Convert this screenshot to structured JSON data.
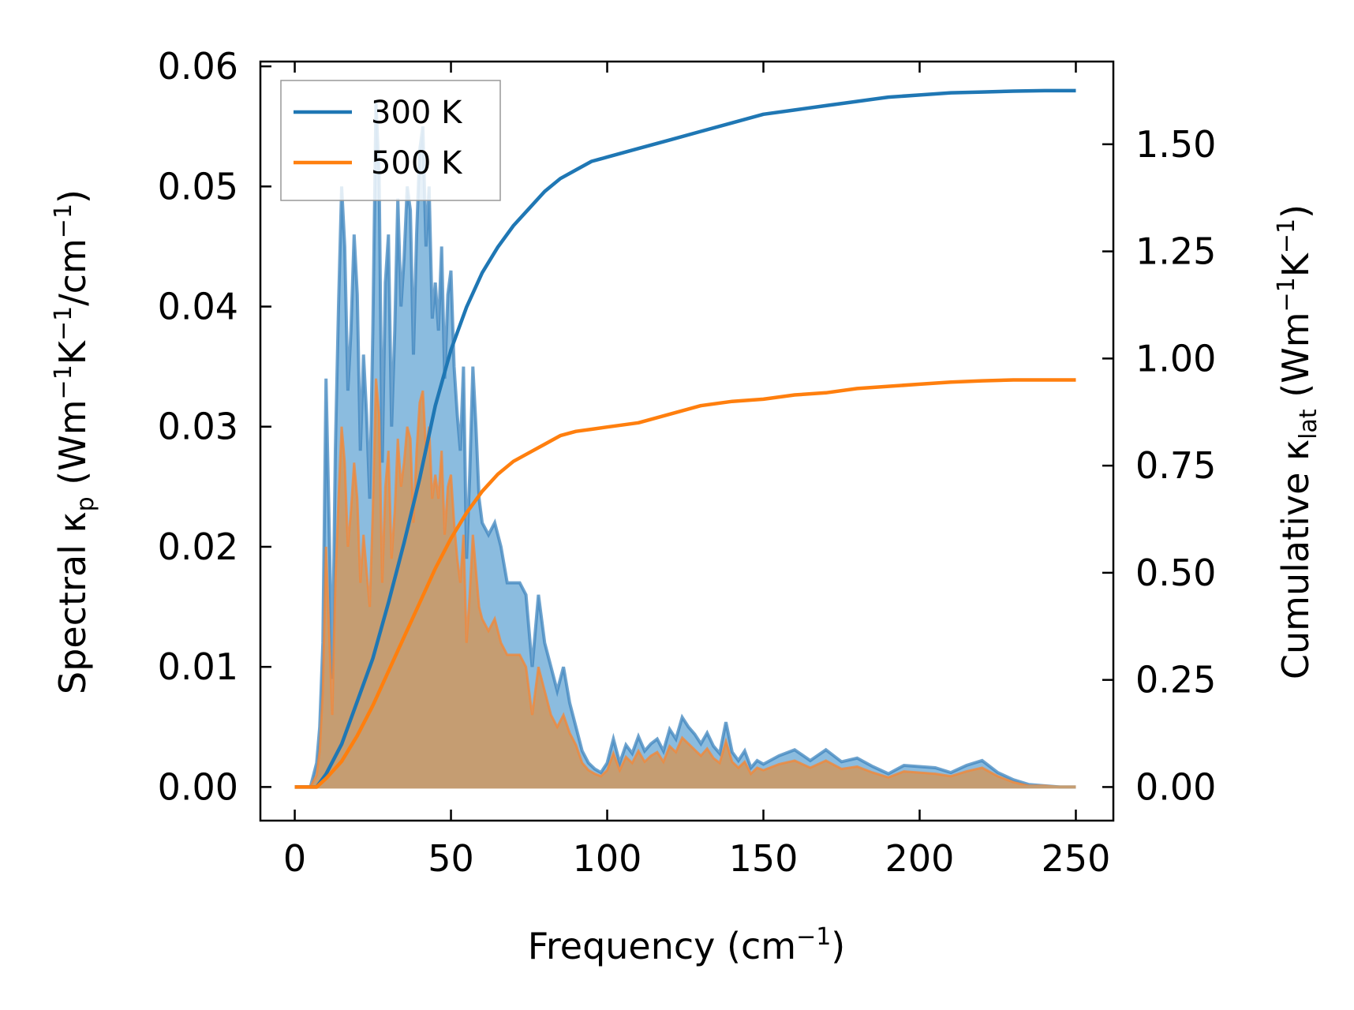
{
  "chart_data": {
    "type": "line",
    "title": "",
    "xlabel": "Frequency (cm⁻¹)",
    "xlabel_main": "Frequency (cm",
    "xlabel_sup": "−1",
    "xlabel_end": ")",
    "ylabel_left": "Spectral κp (Wm⁻¹K⁻¹/cm⁻¹)",
    "ylabel_left_parts": [
      "Spectral κ",
      "p",
      " (Wm",
      "−1",
      "K",
      "−1",
      "/cm",
      "−1",
      ")"
    ],
    "ylabel_right": "Cumulative κlat (Wm⁻¹K⁻¹)",
    "ylabel_right_parts": [
      "Cumulative κ",
      "lat",
      " (Wm",
      "−1",
      "K",
      "−1",
      ")"
    ],
    "xlim": [
      -11,
      262
    ],
    "ylim_left": [
      -0.0028,
      0.0604
    ],
    "ylim_right": [
      -0.0784,
      1.693
    ],
    "x_ticks": [
      0,
      50,
      100,
      150,
      200,
      250
    ],
    "x_tick_labels": [
      "0",
      "50",
      "100",
      "150",
      "200",
      "250"
    ],
    "y_left_ticks": [
      0.0,
      0.01,
      0.02,
      0.03,
      0.04,
      0.05,
      0.06
    ],
    "y_left_tick_labels": [
      "0.00",
      "0.01",
      "0.02",
      "0.03",
      "0.04",
      "0.05",
      "0.06"
    ],
    "y_right_ticks": [
      0.0,
      0.25,
      0.5,
      0.75,
      1.0,
      1.25,
      1.5
    ],
    "y_right_tick_labels": [
      "0.00",
      "0.25",
      "0.50",
      "0.75",
      "1.00",
      "1.25",
      "1.50"
    ],
    "legend_position": "upper-left",
    "colors": {
      "300K": "#1f77b4",
      "500K": "#ff7f0e",
      "fill300": "#8bbcdf",
      "fill500": "#c59d72"
    },
    "series": [
      {
        "name": "300 K",
        "axis": "right",
        "kind": "cumulative",
        "x": [
          0,
          5,
          7,
          10,
          15,
          20,
          25,
          30,
          35,
          40,
          45,
          50,
          55,
          60,
          65,
          70,
          75,
          80,
          85,
          90,
          95,
          100,
          110,
          120,
          130,
          140,
          150,
          160,
          170,
          180,
          190,
          200,
          210,
          220,
          230,
          240,
          250
        ],
        "values": [
          0,
          0,
          0.0,
          0.03,
          0.1,
          0.2,
          0.3,
          0.43,
          0.57,
          0.72,
          0.89,
          1.02,
          1.12,
          1.2,
          1.26,
          1.31,
          1.35,
          1.39,
          1.42,
          1.44,
          1.46,
          1.47,
          1.49,
          1.51,
          1.53,
          1.55,
          1.57,
          1.58,
          1.59,
          1.6,
          1.61,
          1.615,
          1.62,
          1.622,
          1.624,
          1.625,
          1.625
        ]
      },
      {
        "name": "500 K",
        "axis": "right",
        "kind": "cumulative",
        "x": [
          0,
          5,
          7,
          10,
          15,
          20,
          25,
          30,
          35,
          40,
          45,
          50,
          55,
          60,
          65,
          70,
          75,
          80,
          85,
          90,
          95,
          100,
          110,
          120,
          130,
          140,
          150,
          160,
          170,
          180,
          190,
          200,
          210,
          220,
          230,
          240,
          250
        ],
        "values": [
          0,
          0,
          0.0,
          0.02,
          0.06,
          0.12,
          0.19,
          0.27,
          0.35,
          0.43,
          0.51,
          0.58,
          0.64,
          0.69,
          0.73,
          0.76,
          0.78,
          0.8,
          0.82,
          0.83,
          0.835,
          0.84,
          0.85,
          0.87,
          0.89,
          0.9,
          0.905,
          0.915,
          0.92,
          0.93,
          0.935,
          0.94,
          0.945,
          0.948,
          0.95,
          0.95,
          0.95
        ]
      },
      {
        "name": "300 K spectral",
        "axis": "left",
        "kind": "spectral",
        "x": [
          0,
          5,
          7,
          8,
          9,
          10,
          11,
          12,
          13,
          14,
          15,
          16,
          17,
          18,
          19,
          20,
          21,
          22,
          23,
          24,
          25,
          26,
          27,
          28,
          29,
          30,
          31,
          32,
          33,
          34,
          35,
          36,
          37,
          38,
          39,
          40,
          41,
          42,
          43,
          44,
          45,
          46,
          47,
          48,
          49,
          50,
          51,
          52,
          53,
          54,
          55,
          56,
          57,
          58,
          59,
          60,
          62,
          64,
          66,
          68,
          70,
          72,
          74,
          76,
          78,
          80,
          82,
          84,
          86,
          88,
          90,
          92,
          94,
          96,
          98,
          100,
          102,
          104,
          106,
          108,
          110,
          112,
          114,
          116,
          118,
          120,
          122,
          124,
          126,
          128,
          130,
          132,
          134,
          136,
          138,
          140,
          142,
          144,
          146,
          148,
          150,
          155,
          160,
          165,
          170,
          175,
          180,
          185,
          190,
          195,
          200,
          205,
          210,
          215,
          220,
          225,
          230,
          235,
          240,
          245,
          250
        ],
        "values": [
          0,
          0,
          0.002,
          0.005,
          0.012,
          0.034,
          0.022,
          0.009,
          0.028,
          0.04,
          0.05,
          0.045,
          0.033,
          0.038,
          0.046,
          0.041,
          0.028,
          0.036,
          0.031,
          0.024,
          0.038,
          0.057,
          0.051,
          0.027,
          0.042,
          0.046,
          0.03,
          0.038,
          0.049,
          0.04,
          0.044,
          0.05,
          0.048,
          0.036,
          0.046,
          0.053,
          0.055,
          0.045,
          0.05,
          0.039,
          0.042,
          0.038,
          0.045,
          0.034,
          0.041,
          0.043,
          0.035,
          0.031,
          0.028,
          0.035,
          0.019,
          0.026,
          0.035,
          0.03,
          0.024,
          0.022,
          0.021,
          0.022,
          0.02,
          0.017,
          0.017,
          0.017,
          0.016,
          0.01,
          0.016,
          0.012,
          0.01,
          0.008,
          0.01,
          0.007,
          0.005,
          0.003,
          0.002,
          0.0015,
          0.0012,
          0.002,
          0.004,
          0.002,
          0.0035,
          0.0028,
          0.0042,
          0.003,
          0.0036,
          0.004,
          0.003,
          0.0048,
          0.004,
          0.0058,
          0.005,
          0.0044,
          0.0036,
          0.0045,
          0.0034,
          0.0028,
          0.0054,
          0.0029,
          0.0022,
          0.003,
          0.0016,
          0.0022,
          0.0019,
          0.0026,
          0.0031,
          0.0022,
          0.0031,
          0.0021,
          0.0024,
          0.0017,
          0.0011,
          0.0018,
          0.0017,
          0.0016,
          0.0012,
          0.0018,
          0.0022,
          0.0012,
          0.0006,
          0.0002,
          0.0001,
          0.0,
          0.0
        ]
      },
      {
        "name": "500 K spectral",
        "axis": "left",
        "kind": "spectral",
        "x": [
          0,
          5,
          7,
          8,
          9,
          10,
          11,
          12,
          13,
          14,
          15,
          16,
          17,
          18,
          19,
          20,
          21,
          22,
          23,
          24,
          25,
          26,
          27,
          28,
          29,
          30,
          31,
          32,
          33,
          34,
          35,
          36,
          37,
          38,
          39,
          40,
          41,
          42,
          43,
          44,
          45,
          46,
          47,
          48,
          49,
          50,
          51,
          52,
          53,
          54,
          55,
          56,
          57,
          58,
          59,
          60,
          62,
          64,
          66,
          68,
          70,
          72,
          74,
          76,
          78,
          80,
          82,
          84,
          86,
          88,
          90,
          92,
          94,
          96,
          98,
          100,
          102,
          104,
          106,
          108,
          110,
          112,
          114,
          116,
          118,
          120,
          122,
          124,
          126,
          128,
          130,
          132,
          134,
          136,
          138,
          140,
          142,
          144,
          146,
          148,
          150,
          155,
          160,
          165,
          170,
          175,
          180,
          185,
          190,
          195,
          200,
          205,
          210,
          215,
          220,
          225,
          230,
          235,
          240,
          245,
          250
        ],
        "values": [
          0,
          0,
          0.001,
          0.003,
          0.008,
          0.02,
          0.013,
          0.006,
          0.017,
          0.024,
          0.03,
          0.027,
          0.02,
          0.023,
          0.027,
          0.024,
          0.017,
          0.021,
          0.018,
          0.015,
          0.023,
          0.034,
          0.031,
          0.017,
          0.025,
          0.028,
          0.019,
          0.023,
          0.029,
          0.025,
          0.027,
          0.03,
          0.029,
          0.022,
          0.028,
          0.032,
          0.033,
          0.028,
          0.03,
          0.024,
          0.026,
          0.024,
          0.028,
          0.021,
          0.025,
          0.026,
          0.022,
          0.019,
          0.017,
          0.021,
          0.012,
          0.016,
          0.021,
          0.018,
          0.015,
          0.014,
          0.013,
          0.014,
          0.012,
          0.011,
          0.011,
          0.011,
          0.01,
          0.006,
          0.01,
          0.008,
          0.006,
          0.005,
          0.006,
          0.0045,
          0.0035,
          0.002,
          0.0014,
          0.0011,
          0.0009,
          0.0014,
          0.0028,
          0.0014,
          0.0025,
          0.002,
          0.003,
          0.0021,
          0.0026,
          0.0029,
          0.0021,
          0.0034,
          0.0029,
          0.0041,
          0.0036,
          0.0031,
          0.0026,
          0.0032,
          0.0024,
          0.002,
          0.0038,
          0.0021,
          0.0016,
          0.0021,
          0.0011,
          0.0016,
          0.0014,
          0.0019,
          0.0022,
          0.0016,
          0.0022,
          0.0015,
          0.0017,
          0.0012,
          0.0008,
          0.0013,
          0.0012,
          0.0011,
          0.0009,
          0.0013,
          0.0016,
          0.0009,
          0.0004,
          0.0001,
          0.0001,
          0.0,
          0.0
        ]
      }
    ],
    "legend": [
      "300 K",
      "500 K"
    ]
  }
}
